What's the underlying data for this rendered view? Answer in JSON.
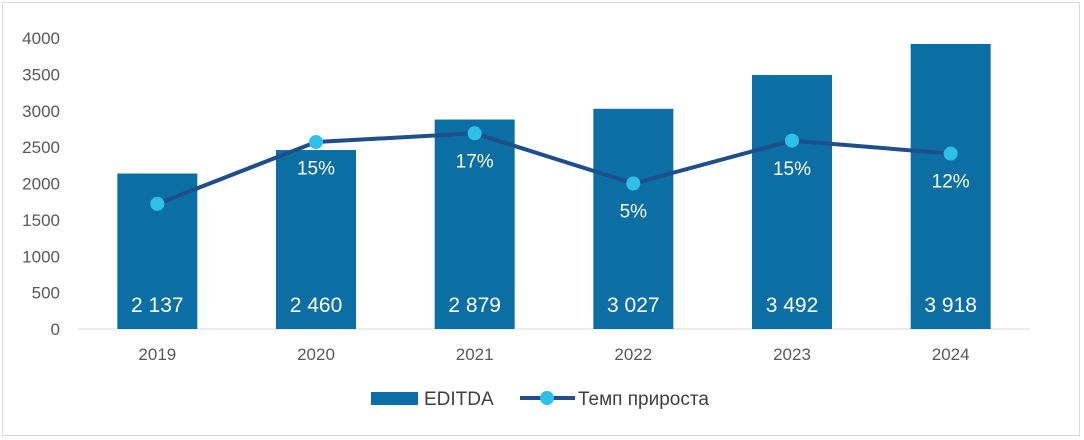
{
  "chart_data": {
    "type": "bar",
    "categories": [
      "2019",
      "2020",
      "2021",
      "2022",
      "2023",
      "2024"
    ],
    "ylim": [
      0,
      4000
    ],
    "yticks": [
      0,
      500,
      1000,
      1500,
      2000,
      2500,
      3000,
      3500,
      4000
    ],
    "grid": false,
    "legend_position": "bottom",
    "series": [
      {
        "name": "EDITDA",
        "type": "bar",
        "color": "#0B6FA4",
        "values": [
          2137,
          2460,
          2879,
          3027,
          3492,
          3918
        ],
        "labels": [
          "2 137",
          "2 460",
          "2 879",
          "3 027",
          "3 492",
          "3 918"
        ]
      },
      {
        "name": "Темп прироста",
        "type": "line",
        "line_color": "#1F4E8C",
        "marker_color": "#2EC0E6",
        "plotted_values": [
          1720,
          2570,
          2690,
          2000,
          2590,
          2410
        ],
        "labels": [
          "",
          "15%",
          "17%",
          "5%",
          "15%",
          "12%"
        ],
        "label_y": [
          0,
          2125,
          2220,
          1535,
          2115,
          1945
        ]
      }
    ]
  }
}
